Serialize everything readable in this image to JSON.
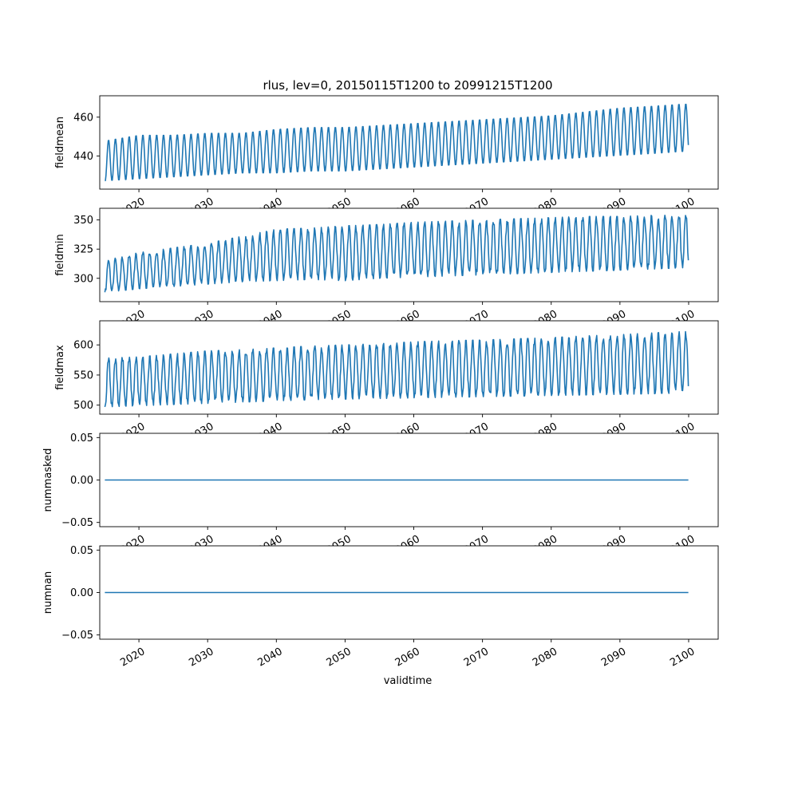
{
  "chart_data": {
    "type": "line",
    "title": "rlus, lev=0, 20150115T1200 to 20991215T1200",
    "xlabel": "validtime",
    "x_start": "2015-01",
    "x_end": "2099-12",
    "x_frequency": "monthly",
    "xlim": [
      2014.3,
      2104.3
    ],
    "x_ticks": [
      "2020",
      "2030",
      "2040",
      "2050",
      "2060",
      "2070",
      "2080",
      "2090",
      "2100"
    ],
    "line_color": "#1f77b4",
    "subplots": [
      {
        "ylabel": "fieldmean",
        "ylim": [
          423,
          471
        ],
        "y_ticks": [
          "440",
          "460"
        ],
        "series": [
          {
            "year": 2015,
            "min": 427,
            "max": 448
          },
          {
            "year": 2020,
            "min": 428,
            "max": 451
          },
          {
            "year": 2025,
            "min": 429,
            "max": 451
          },
          {
            "year": 2030,
            "min": 430,
            "max": 452
          },
          {
            "year": 2035,
            "min": 431,
            "max": 452
          },
          {
            "year": 2040,
            "min": 431,
            "max": 454
          },
          {
            "year": 2045,
            "min": 432,
            "max": 455
          },
          {
            "year": 2050,
            "min": 432,
            "max": 455
          },
          {
            "year": 2055,
            "min": 433,
            "max": 456
          },
          {
            "year": 2060,
            "min": 434,
            "max": 457
          },
          {
            "year": 2065,
            "min": 435,
            "max": 458
          },
          {
            "year": 2070,
            "min": 436,
            "max": 459
          },
          {
            "year": 2075,
            "min": 437,
            "max": 460
          },
          {
            "year": 2080,
            "min": 438,
            "max": 461
          },
          {
            "year": 2085,
            "min": 439,
            "max": 463
          },
          {
            "year": 2090,
            "min": 440,
            "max": 465
          },
          {
            "year": 2095,
            "min": 441,
            "max": 466
          },
          {
            "year": 2099,
            "min": 442,
            "max": 467
          }
        ]
      },
      {
        "ylabel": "fieldmin",
        "ylim": [
          280,
          360
        ],
        "y_ticks": [
          "300",
          "325",
          "350"
        ],
        "series": [
          {
            "year": 2015,
            "min": 288,
            "max": 316
          },
          {
            "year": 2020,
            "min": 291,
            "max": 322
          },
          {
            "year": 2025,
            "min": 293,
            "max": 326
          },
          {
            "year": 2030,
            "min": 295,
            "max": 330
          },
          {
            "year": 2035,
            "min": 297,
            "max": 336
          },
          {
            "year": 2040,
            "min": 298,
            "max": 342
          },
          {
            "year": 2045,
            "min": 299,
            "max": 343
          },
          {
            "year": 2050,
            "min": 298,
            "max": 345
          },
          {
            "year": 2055,
            "min": 300,
            "max": 346
          },
          {
            "year": 2060,
            "min": 301,
            "max": 348
          },
          {
            "year": 2065,
            "min": 302,
            "max": 349
          },
          {
            "year": 2070,
            "min": 303,
            "max": 350
          },
          {
            "year": 2075,
            "min": 304,
            "max": 351
          },
          {
            "year": 2080,
            "min": 305,
            "max": 352
          },
          {
            "year": 2085,
            "min": 306,
            "max": 353
          },
          {
            "year": 2090,
            "min": 307,
            "max": 353
          },
          {
            "year": 2095,
            "min": 308,
            "max": 354
          },
          {
            "year": 2099,
            "min": 309,
            "max": 355
          }
        ]
      },
      {
        "ylabel": "fieldmax",
        "ylim": [
          485,
          640
        ],
        "y_ticks": [
          "500",
          "550",
          "600"
        ],
        "series": [
          {
            "year": 2015,
            "min": 497,
            "max": 578
          },
          {
            "year": 2020,
            "min": 499,
            "max": 580
          },
          {
            "year": 2025,
            "min": 501,
            "max": 585
          },
          {
            "year": 2030,
            "min": 503,
            "max": 590
          },
          {
            "year": 2035,
            "min": 505,
            "max": 592
          },
          {
            "year": 2040,
            "min": 507,
            "max": 595
          },
          {
            "year": 2045,
            "min": 509,
            "max": 598
          },
          {
            "year": 2050,
            "min": 510,
            "max": 600
          },
          {
            "year": 2055,
            "min": 511,
            "max": 602
          },
          {
            "year": 2060,
            "min": 512,
            "max": 605
          },
          {
            "year": 2065,
            "min": 513,
            "max": 607
          },
          {
            "year": 2070,
            "min": 514,
            "max": 608
          },
          {
            "year": 2075,
            "min": 515,
            "max": 610
          },
          {
            "year": 2080,
            "min": 516,
            "max": 612
          },
          {
            "year": 2085,
            "min": 517,
            "max": 615
          },
          {
            "year": 2090,
            "min": 518,
            "max": 617
          },
          {
            "year": 2095,
            "min": 519,
            "max": 620
          },
          {
            "year": 2099,
            "min": 520,
            "max": 622
          }
        ]
      },
      {
        "ylabel": "nummasked",
        "ylim": [
          -0.055,
          0.055
        ],
        "y_ticks": [
          "−0.05",
          "0.00",
          "0.05"
        ],
        "series": [
          {
            "year": 2015,
            "min": 0,
            "max": 0
          },
          {
            "year": 2099,
            "min": 0,
            "max": 0
          }
        ]
      },
      {
        "ylabel": "numnan",
        "ylim": [
          -0.055,
          0.055
        ],
        "y_ticks": [
          "−0.05",
          "0.00",
          "0.05"
        ],
        "series": [
          {
            "year": 2015,
            "min": 0,
            "max": 0
          },
          {
            "year": 2099,
            "min": 0,
            "max": 0
          }
        ]
      }
    ]
  }
}
